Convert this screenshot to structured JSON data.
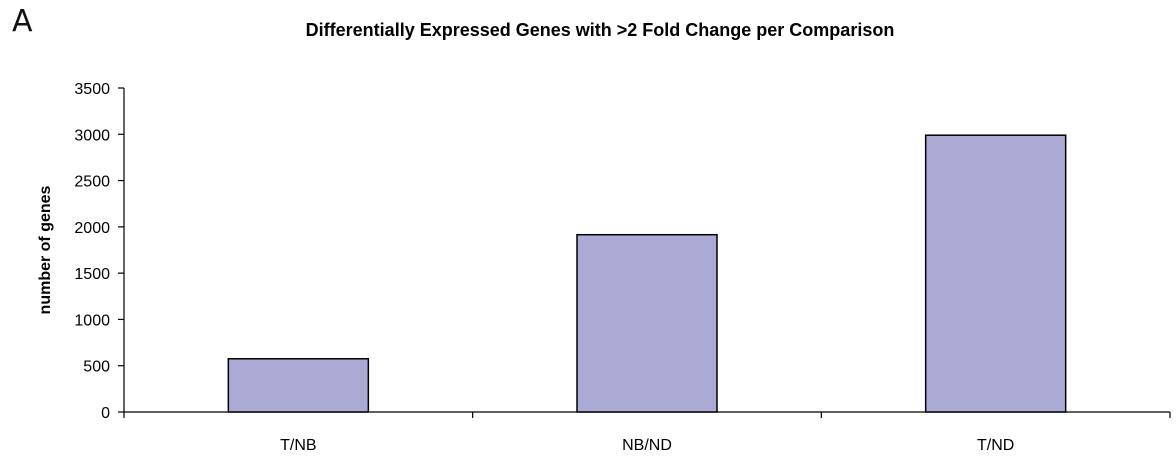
{
  "panel_label": "A",
  "chart_data": {
    "type": "bar",
    "title": "Differentially Expressed Genes with >2 Fold Change per Comparison",
    "xlabel": "",
    "ylabel": "number of genes",
    "categories": [
      "T/NB",
      "NB/ND",
      "T/ND"
    ],
    "values": [
      575,
      1915,
      2990
    ],
    "ylim": [
      0,
      3500
    ],
    "yticks": [
      0,
      500,
      1000,
      1500,
      2000,
      2500,
      3000,
      3500
    ],
    "grid": false,
    "legend": "none",
    "bar_color": "#aaaad5",
    "bar_edge_color": "#000000"
  }
}
